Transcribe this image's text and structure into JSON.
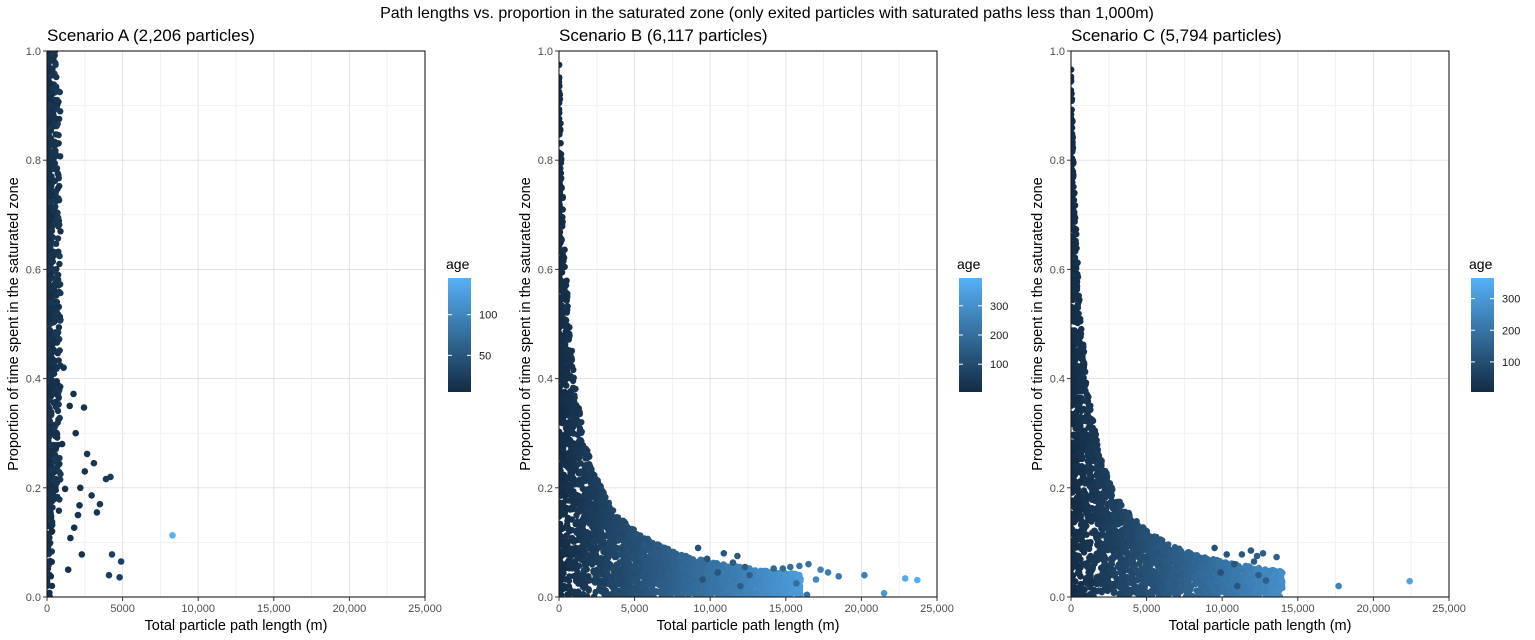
{
  "title": "Path lengths vs. proportion in the saturated zone (only exited particles with saturated paths less than 1,000m)",
  "chart_data": [
    {
      "type": "scatter",
      "title": "Scenario A (2,206 particles)",
      "xlabel": "Total particle path length (m)",
      "ylabel": "Proportion of time spent in the saturated zone",
      "xlim": [
        0,
        25000
      ],
      "ylim": [
        0,
        1
      ],
      "xticks": [
        0,
        5000,
        10000,
        15000,
        20000,
        25000
      ],
      "xtick_labels": [
        "0",
        "5000",
        "10,000",
        "15,000",
        "20,000",
        "25,000"
      ],
      "yticks": [
        0,
        0.2,
        0.4,
        0.6,
        0.8,
        1
      ],
      "ytick_labels": [
        "0.0",
        "0.2",
        "0.4",
        "0.6",
        "0.8",
        "1.0"
      ],
      "grid": true,
      "legend": {
        "title": "age",
        "ticks": [
          50,
          100
        ],
        "range": [
          5,
          145
        ],
        "position": "right"
      },
      "points": [
        {
          "x": 8300,
          "y": 0.113,
          "age": 145
        },
        {
          "x": 4200,
          "y": 0.22,
          "age": 22
        },
        {
          "x": 3900,
          "y": 0.216,
          "age": 20
        },
        {
          "x": 4300,
          "y": 0.078,
          "age": 26
        },
        {
          "x": 4900,
          "y": 0.065,
          "age": 28
        },
        {
          "x": 4100,
          "y": 0.04,
          "age": 25
        },
        {
          "x": 4800,
          "y": 0.036,
          "age": 27
        },
        {
          "x": 2950,
          "y": 0.186,
          "age": 18
        },
        {
          "x": 2650,
          "y": 0.262,
          "age": 16
        },
        {
          "x": 3100,
          "y": 0.245,
          "age": 17
        },
        {
          "x": 2450,
          "y": 0.347,
          "age": 14
        },
        {
          "x": 3500,
          "y": 0.17,
          "age": 18
        },
        {
          "x": 2150,
          "y": 0.168,
          "age": 12
        },
        {
          "x": 1800,
          "y": 0.127,
          "age": 11
        },
        {
          "x": 2300,
          "y": 0.078,
          "age": 13
        },
        {
          "x": 1550,
          "y": 0.108,
          "age": 10
        },
        {
          "x": 2050,
          "y": 0.15,
          "age": 12
        },
        {
          "x": 1200,
          "y": 0.198,
          "age": 9
        },
        {
          "x": 1500,
          "y": 0.35,
          "age": 10
        },
        {
          "x": 1750,
          "y": 0.372,
          "age": 11
        },
        {
          "x": 2500,
          "y": 0.23,
          "age": 15
        },
        {
          "x": 3300,
          "y": 0.155,
          "age": 18
        },
        {
          "x": 1400,
          "y": 0.05,
          "age": 10
        },
        {
          "x": 1000,
          "y": 0.28,
          "age": 9
        },
        {
          "x": 1900,
          "y": 0.3,
          "age": 12
        },
        {
          "x": 1100,
          "y": 0.42,
          "age": 9
        },
        {
          "x": 2200,
          "y": 0.2,
          "age": 13
        }
      ]
    },
    {
      "type": "scatter",
      "title": "Scenario B (6,117 particles)",
      "xlabel": "Total particle path length (m)",
      "ylabel": "Proportion of time spent in the saturated zone",
      "xlim": [
        0,
        25000
      ],
      "ylim": [
        0,
        1
      ],
      "xticks": [
        0,
        5000,
        10000,
        15000,
        20000,
        25000
      ],
      "xtick_labels": [
        "0",
        "5,000",
        "10,000",
        "15,000",
        "20,000",
        "25,000"
      ],
      "yticks": [
        0,
        0.2,
        0.4,
        0.6,
        0.8,
        1
      ],
      "ytick_labels": [
        "0.0",
        "0.2",
        "0.4",
        "0.6",
        "0.8",
        "1.0"
      ],
      "grid": true,
      "legend": {
        "title": "age",
        "ticks": [
          100,
          200,
          300
        ],
        "range": [
          5,
          395
        ],
        "position": "right"
      },
      "points": [
        {
          "x": 23700,
          "y": 0.031,
          "age": 390
        },
        {
          "x": 22900,
          "y": 0.034,
          "age": 370
        },
        {
          "x": 21500,
          "y": 0.007,
          "age": 320
        },
        {
          "x": 20200,
          "y": 0.04,
          "age": 250
        },
        {
          "x": 18500,
          "y": 0.038,
          "age": 230
        },
        {
          "x": 17800,
          "y": 0.045,
          "age": 240
        },
        {
          "x": 17300,
          "y": 0.05,
          "age": 260
        },
        {
          "x": 17000,
          "y": 0.032,
          "age": 270
        },
        {
          "x": 16500,
          "y": 0.06,
          "age": 210
        },
        {
          "x": 15900,
          "y": 0.057,
          "age": 220
        },
        {
          "x": 15300,
          "y": 0.055,
          "age": 200
        },
        {
          "x": 15700,
          "y": 0.025,
          "age": 200
        },
        {
          "x": 14800,
          "y": 0.052,
          "age": 190
        },
        {
          "x": 14200,
          "y": 0.052,
          "age": 180
        },
        {
          "x": 16400,
          "y": 0.004,
          "age": 210
        },
        {
          "x": 12300,
          "y": 0.055,
          "age": 150
        },
        {
          "x": 12600,
          "y": 0.04,
          "age": 160
        },
        {
          "x": 11800,
          "y": 0.075,
          "age": 140
        },
        {
          "x": 12000,
          "y": 0.02,
          "age": 150
        },
        {
          "x": 11500,
          "y": 0.063,
          "age": 140
        },
        {
          "x": 10900,
          "y": 0.08,
          "age": 130
        },
        {
          "x": 10500,
          "y": 0.045,
          "age": 130
        },
        {
          "x": 9800,
          "y": 0.07,
          "age": 120
        },
        {
          "x": 9500,
          "y": 0.032,
          "age": 120
        },
        {
          "x": 9200,
          "y": 0.09,
          "age": 110
        }
      ]
    },
    {
      "type": "scatter",
      "title": "Scenario C (5,794 particles)",
      "xlabel": "Total particle path length (m)",
      "ylabel": "Proportion of time spent in the saturated zone",
      "xlim": [
        0,
        25000
      ],
      "ylim": [
        0,
        1
      ],
      "xticks": [
        0,
        5000,
        10000,
        15000,
        20000,
        25000
      ],
      "xtick_labels": [
        "0",
        "5,000",
        "10,000",
        "15,000",
        "20,000",
        "25,000"
      ],
      "yticks": [
        0,
        0.2,
        0.4,
        0.6,
        0.8,
        1
      ],
      "ytick_labels": [
        "0.0",
        "0.2",
        "0.4",
        "0.6",
        "0.8",
        "1.0"
      ],
      "grid": true,
      "legend": {
        "title": "age",
        "ticks": [
          100,
          200,
          300
        ],
        "range": [
          5,
          365
        ],
        "position": "right"
      },
      "points": [
        {
          "x": 22400,
          "y": 0.029,
          "age": 330
        },
        {
          "x": 17700,
          "y": 0.02,
          "age": 240
        },
        {
          "x": 13600,
          "y": 0.073,
          "age": 150
        },
        {
          "x": 12700,
          "y": 0.08,
          "age": 140
        },
        {
          "x": 12300,
          "y": 0.075,
          "age": 140
        },
        {
          "x": 11900,
          "y": 0.085,
          "age": 130
        },
        {
          "x": 12100,
          "y": 0.065,
          "age": 135
        },
        {
          "x": 11300,
          "y": 0.078,
          "age": 125
        },
        {
          "x": 12400,
          "y": 0.04,
          "age": 140
        },
        {
          "x": 12900,
          "y": 0.03,
          "age": 145
        },
        {
          "x": 10800,
          "y": 0.06,
          "age": 120
        },
        {
          "x": 10300,
          "y": 0.078,
          "age": 115
        },
        {
          "x": 9900,
          "y": 0.045,
          "age": 110
        },
        {
          "x": 9500,
          "y": 0.09,
          "age": 110
        },
        {
          "x": 11000,
          "y": 0.02,
          "age": 120
        }
      ]
    }
  ]
}
